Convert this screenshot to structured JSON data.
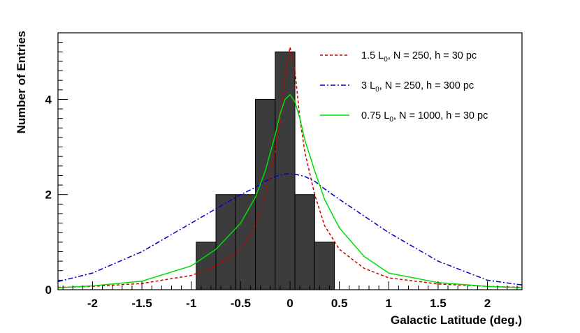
{
  "chart_data": {
    "type": "bar",
    "xlabel": "Galactic Latitude (deg.)",
    "ylabel": "Number of Entries",
    "xlim": [
      -2.35,
      2.35
    ],
    "ylim": [
      0,
      5.4
    ],
    "x_ticks": [
      -2,
      -1.5,
      -1,
      -0.5,
      0,
      0.5,
      1,
      1.5,
      2
    ],
    "x_tick_labels": [
      "-2",
      "-1.5",
      "-1",
      "-0.5",
      "0",
      "0.5",
      "1",
      "1.5",
      "2"
    ],
    "y_ticks": [
      0,
      2,
      4
    ],
    "y_tick_labels": [
      "0",
      "2",
      "4"
    ],
    "grid": false,
    "legend_position": "top-right",
    "histogram": {
      "bin_edges": [
        -0.95,
        -0.75,
        -0.55,
        -0.35,
        -0.15,
        0.05,
        0.25,
        0.45
      ],
      "bin_upper_edge": 0.55,
      "counts": [
        1,
        2,
        2,
        4,
        5,
        2,
        1
      ],
      "color": "#3c3c3c"
    },
    "series": [
      {
        "name_parts": [
          "1.5 L",
          "0",
          ", N = 250, h = 30 pc"
        ],
        "color": "#cc0000",
        "dash": "4,3",
        "x": [
          -2.35,
          -2.0,
          -1.5,
          -1.0,
          -0.75,
          -0.5,
          -0.35,
          -0.25,
          -0.15,
          -0.1,
          -0.05,
          0.0,
          0.05,
          0.1,
          0.15,
          0.25,
          0.35,
          0.5,
          0.75,
          1.0,
          1.5,
          2.0,
          2.35
        ],
        "y": [
          0.05,
          0.07,
          0.13,
          0.3,
          0.5,
          0.85,
          1.35,
          2.0,
          2.9,
          3.6,
          4.5,
          5.1,
          4.6,
          3.6,
          2.9,
          2.0,
          1.35,
          0.85,
          0.45,
          0.25,
          0.12,
          0.07,
          0.05
        ]
      },
      {
        "name_parts": [
          "3 L",
          "0",
          ", N = 250, h = 300 pc"
        ],
        "color": "#0000cc",
        "dash": "7,3,2,3",
        "x": [
          -2.35,
          -2.0,
          -1.5,
          -1.0,
          -0.75,
          -0.5,
          -0.35,
          -0.25,
          -0.15,
          -0.05,
          0.0,
          0.05,
          0.15,
          0.25,
          0.35,
          0.5,
          0.75,
          1.0,
          1.5,
          2.0,
          2.35
        ],
        "y": [
          0.17,
          0.35,
          0.8,
          1.4,
          1.7,
          2.0,
          2.15,
          2.28,
          2.38,
          2.43,
          2.44,
          2.43,
          2.38,
          2.28,
          2.12,
          1.9,
          1.55,
          1.2,
          0.6,
          0.2,
          0.1
        ]
      },
      {
        "name_parts": [
          "0.75 L",
          "0",
          ", N = 1000, h = 30 pc"
        ],
        "color": "#00dd00",
        "dash": "",
        "x": [
          -2.35,
          -2.0,
          -1.5,
          -1.0,
          -0.75,
          -0.5,
          -0.35,
          -0.25,
          -0.15,
          -0.1,
          -0.05,
          0.0,
          0.05,
          0.1,
          0.15,
          0.25,
          0.35,
          0.5,
          0.75,
          1.0,
          1.5,
          2.0,
          2.35
        ],
        "y": [
          0.04,
          0.08,
          0.18,
          0.5,
          0.85,
          1.4,
          1.95,
          2.5,
          3.25,
          3.7,
          4.0,
          4.1,
          3.95,
          3.6,
          3.15,
          2.5,
          1.9,
          1.3,
          0.7,
          0.35,
          0.15,
          0.07,
          0.04
        ]
      }
    ]
  }
}
